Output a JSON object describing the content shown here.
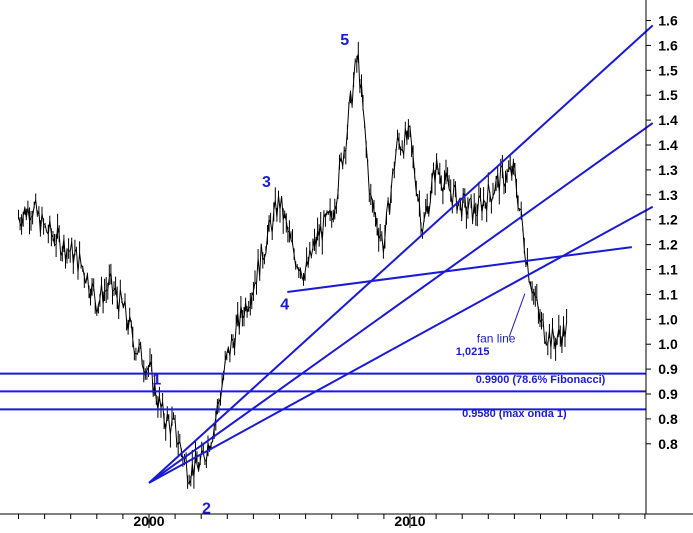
{
  "chart_data": {
    "type": "line",
    "title": "",
    "xlabel": "",
    "ylabel": "",
    "x_ticks": [
      "2000",
      "2010"
    ],
    "y_ticks": [
      "1.6",
      "1.6",
      "1.5",
      "1.5",
      "1.4",
      "1.4",
      "1.3",
      "1.3",
      "1.2",
      "1.2",
      "1.1",
      "1.1",
      "1.0",
      "1.0",
      "0.9",
      "0.9",
      "0.8",
      "0.8"
    ],
    "grid": false,
    "colors": {
      "price": "#000000",
      "annotation": "#1a1ad6",
      "axis": "#000000"
    },
    "wave_labels": [
      "1",
      "2",
      "3",
      "4",
      "5"
    ],
    "level_lines": [
      {
        "label": "1,0215",
        "value": 1.0215
      },
      {
        "label": "0.9900 (78.6%  Fibonacci)",
        "value": 0.99
      },
      {
        "label": "0.9580 (max onda 1)",
        "value": 0.958
      }
    ],
    "fan_label": "fan line",
    "fan_lines": [
      {
        "from": [
          2000.0,
          0.827
        ],
        "to": [
          2019.3,
          1.642
        ]
      },
      {
        "from": [
          2000.0,
          0.827
        ],
        "to": [
          2019.3,
          1.468
        ]
      },
      {
        "from": [
          2000.0,
          0.827
        ],
        "to": [
          2019.3,
          1.319
        ]
      }
    ],
    "trend_line": {
      "from": [
        2005.3,
        1.167
      ],
      "to": [
        2018.5,
        1.247
      ]
    },
    "price_series": {
      "x": [
        1995.0,
        1995.5,
        1996.0,
        1996.5,
        1997.0,
        1997.5,
        1998.0,
        1998.5,
        1999.0,
        1999.5,
        2000.0,
        2000.5,
        2001.0,
        2001.5,
        2002.0,
        2002.5,
        2003.0,
        2003.5,
        2004.0,
        2004.5,
        2005.0,
        2005.5,
        2006.0,
        2006.5,
        2007.0,
        2007.5,
        2008.0,
        2008.5,
        2009.0,
        2009.5,
        2010.0,
        2010.5,
        2011.0,
        2011.5,
        2012.0,
        2012.5,
        2013.0,
        2013.5,
        2014.0,
        2014.5,
        2015.0,
        2015.5,
        2016.0
      ],
      "y": [
        1.3,
        1.32,
        1.28,
        1.26,
        1.24,
        1.21,
        1.15,
        1.18,
        1.14,
        1.07,
        1.03,
        0.95,
        0.92,
        0.85,
        0.86,
        0.93,
        1.05,
        1.12,
        1.18,
        1.26,
        1.33,
        1.24,
        1.2,
        1.27,
        1.3,
        1.43,
        1.59,
        1.33,
        1.25,
        1.43,
        1.44,
        1.28,
        1.39,
        1.35,
        1.32,
        1.31,
        1.34,
        1.37,
        1.38,
        1.22,
        1.11,
        1.08,
        1.1
      ]
    }
  }
}
